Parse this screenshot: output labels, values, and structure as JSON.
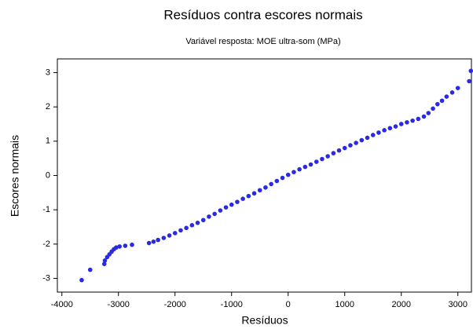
{
  "chart_data": {
    "type": "scatter",
    "title": "Resíduos contra escores normais",
    "subtitle": "Variável resposta: MOE ultra-som (MPa)",
    "x_label": "Resíduos",
    "y_label": "Escores normais",
    "xlim": [
      -4080,
      3240
    ],
    "ylim": [
      -3.4,
      3.4
    ],
    "xticks": [
      -4000,
      -3000,
      -2000,
      -1000,
      0,
      1000,
      2000,
      3000
    ],
    "yticks": [
      -3,
      -2,
      -1,
      0,
      1,
      2,
      3
    ],
    "grid": false,
    "series": [
      {
        "color": "#2a2ae6",
        "x": [
          -3650,
          -3500,
          -3250,
          -3240,
          -3200,
          -3160,
          -3120,
          -3080,
          -3040,
          -2980,
          -2880,
          -2760,
          -2460,
          -2380,
          -2300,
          -2200,
          -2100,
          -2000,
          -1900,
          -1800,
          -1700,
          -1600,
          -1500,
          -1400,
          -1300,
          -1200,
          -1100,
          -1000,
          -900,
          -800,
          -700,
          -600,
          -500,
          -400,
          -300,
          -200,
          -100,
          0,
          100,
          200,
          300,
          400,
          500,
          600,
          700,
          800,
          900,
          1000,
          1100,
          1200,
          1300,
          1400,
          1500,
          1600,
          1700,
          1800,
          1900,
          2000,
          2100,
          2200,
          2300,
          2400,
          2480,
          2560,
          2640,
          2720,
          2800,
          2900,
          3000,
          3200,
          3230
        ],
        "values": [
          -3.05,
          -2.75,
          -2.58,
          -2.48,
          -2.38,
          -2.3,
          -2.22,
          -2.15,
          -2.1,
          -2.07,
          -2.05,
          -2.02,
          -1.97,
          -1.93,
          -1.88,
          -1.82,
          -1.75,
          -1.68,
          -1.6,
          -1.53,
          -1.45,
          -1.38,
          -1.3,
          -1.2,
          -1.12,
          -1.02,
          -0.93,
          -0.85,
          -0.77,
          -0.68,
          -0.6,
          -0.52,
          -0.43,
          -0.35,
          -0.25,
          -0.16,
          -0.07,
          0.02,
          0.1,
          0.18,
          0.25,
          0.32,
          0.4,
          0.48,
          0.56,
          0.65,
          0.73,
          0.8,
          0.88,
          0.95,
          1.03,
          1.1,
          1.18,
          1.25,
          1.32,
          1.38,
          1.43,
          1.5,
          1.55,
          1.6,
          1.65,
          1.72,
          1.82,
          1.95,
          2.08,
          2.18,
          2.3,
          2.42,
          2.55,
          2.75,
          3.05
        ]
      }
    ]
  }
}
